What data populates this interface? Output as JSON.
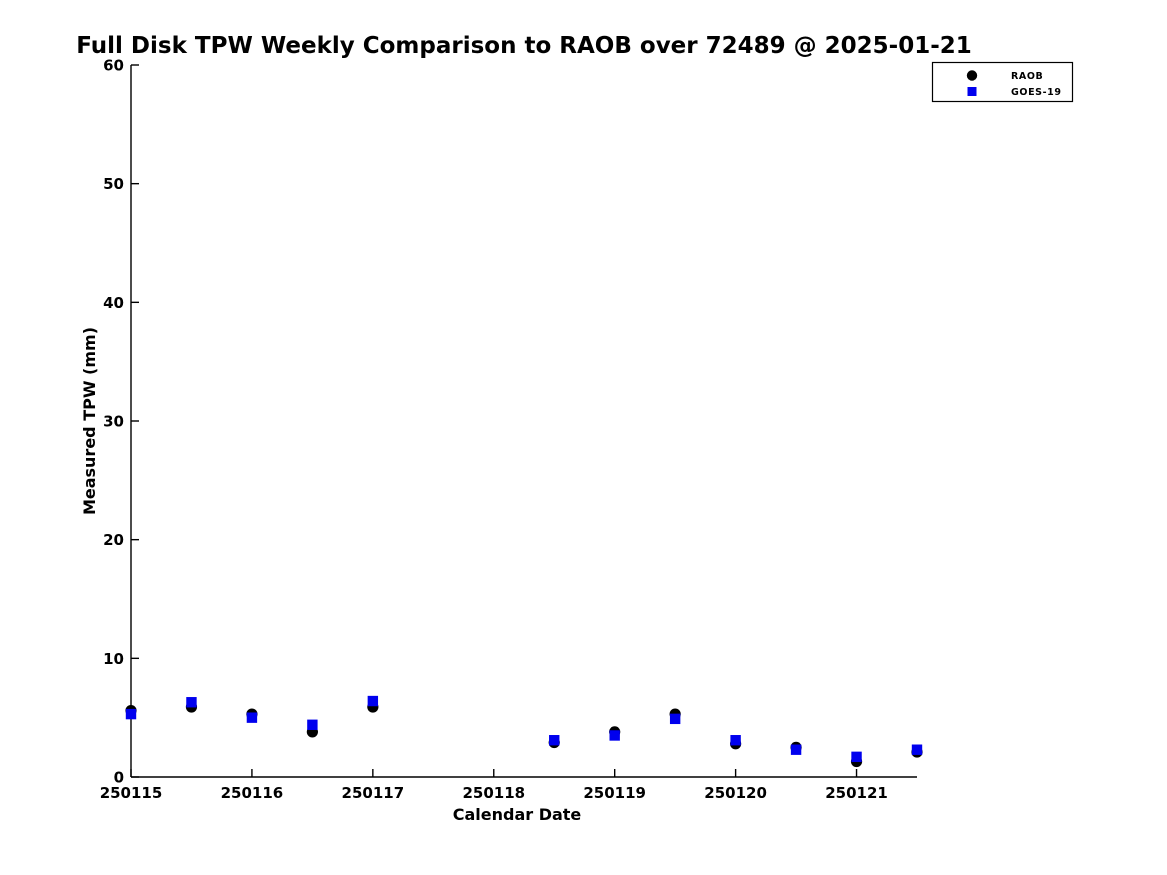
{
  "chart_data": {
    "type": "scatter",
    "title": "Full Disk TPW Weekly Comparison to RAOB over 72489 @ 2025-01-21",
    "xlabel": "Calendar Date",
    "ylabel": "Measured TPW (mm)",
    "xlim": [
      250115,
      250121.5
    ],
    "ylim": [
      0,
      60
    ],
    "grid": false,
    "xticks": [
      250115,
      250116,
      250117,
      250118,
      250119,
      250120,
      250121
    ],
    "xtick_labels": [
      "250115",
      "250116",
      "250117",
      "250118",
      "250119",
      "250120",
      "250121"
    ],
    "yticks": [
      0,
      10,
      20,
      30,
      40,
      50,
      60
    ],
    "ytick_labels": [
      "0",
      "10",
      "20",
      "30",
      "40",
      "50",
      "60"
    ],
    "x": [
      250115,
      250115.5,
      250116,
      250116.5,
      250117,
      250118.5,
      250119,
      250119.5,
      250120,
      250120.5,
      250121,
      250121.5
    ],
    "series": [
      {
        "name": "RAOB",
        "marker": "circle",
        "color": "#000000",
        "values": [
          5.6,
          5.9,
          5.3,
          3.8,
          5.9,
          2.9,
          3.8,
          5.3,
          2.8,
          2.5,
          1.3,
          2.1
        ]
      },
      {
        "name": "GOES-19",
        "marker": "square",
        "color": "#0000ee",
        "values": [
          5.3,
          6.3,
          5.0,
          4.4,
          6.4,
          3.1,
          3.5,
          4.9,
          3.1,
          2.3,
          1.7,
          2.3
        ]
      }
    ],
    "legend": {
      "position": "top-right-outside",
      "entries": [
        {
          "label": "RAOB",
          "marker": "circle",
          "color": "#000000"
        },
        {
          "label": "GOES-19",
          "marker": "square",
          "color": "#0000ee"
        }
      ]
    }
  },
  "colors": {
    "background": "#ffffff",
    "axis": "#000000",
    "text": "#000000"
  }
}
